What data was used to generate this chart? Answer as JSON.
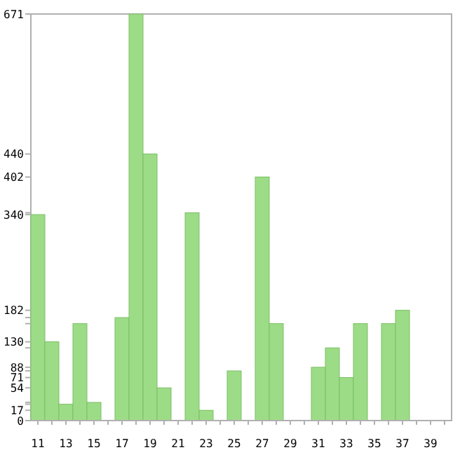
{
  "chart_data": {
    "type": "bar",
    "categories": [
      "11",
      null,
      "13",
      null,
      "15",
      null,
      "17",
      null,
      "19",
      null,
      "21",
      null,
      "23",
      null,
      "25",
      null,
      "27",
      null,
      "29",
      null,
      "31",
      null,
      "33",
      null,
      "35",
      null,
      "37",
      null,
      "39",
      null
    ],
    "values": [
      340,
      130,
      27,
      160,
      30,
      0,
      170,
      671,
      440,
      54,
      0,
      343,
      17,
      0,
      82,
      0,
      402,
      160,
      0,
      0,
      88,
      120,
      71,
      160,
      0,
      160,
      182,
      0,
      0,
      0
    ],
    "color": "#9cdc86",
    "ylim": [
      0,
      671
    ],
    "yticks": [
      0,
      {
        "value": 17,
        "label": "17"
      },
      {
        "value": 27,
        "label": null
      },
      {
        "value": 30,
        "label": null
      },
      54,
      71,
      {
        "value": 82,
        "label": null
      },
      88,
      {
        "value": 120,
        "label": null
      },
      130,
      {
        "value": 160,
        "label": null
      },
      {
        "value": 170,
        "label": null
      },
      182,
      340,
      {
        "value": 343,
        "label": null
      },
      402,
      440,
      671
    ],
    "grid": false
  }
}
